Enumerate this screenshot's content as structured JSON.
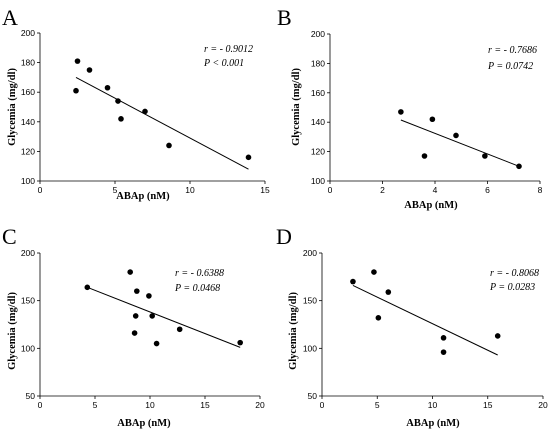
{
  "chart_data": [
    {
      "type": "scatter",
      "panel_label": "A",
      "xlabel": "ABAp (nM)",
      "ylabel": "Glycemia (mg/dl)",
      "xlim": [
        0,
        15
      ],
      "ylim": [
        100,
        200
      ],
      "xticks": [
        0,
        5,
        10,
        15
      ],
      "yticks": [
        100,
        120,
        140,
        160,
        180,
        200
      ],
      "points": [
        {
          "x": 2.5,
          "y": 181
        },
        {
          "x": 2.4,
          "y": 161
        },
        {
          "x": 3.3,
          "y": 175
        },
        {
          "x": 4.5,
          "y": 163
        },
        {
          "x": 5.2,
          "y": 154
        },
        {
          "x": 5.4,
          "y": 142
        },
        {
          "x": 7.0,
          "y": 147
        },
        {
          "x": 8.6,
          "y": 124
        },
        {
          "x": 13.9,
          "y": 116
        }
      ],
      "trendline": {
        "x": [
          2.4,
          13.9
        ],
        "y": [
          170,
          108
        ]
      },
      "stats": {
        "r": "r = - 0.9012",
        "p": "P < 0.001"
      }
    },
    {
      "type": "scatter",
      "panel_label": "B",
      "xlabel": "ABAp (nM)",
      "ylabel": "Glycemia (mg/dl)",
      "xlim": [
        0,
        8
      ],
      "ylim": [
        100,
        200
      ],
      "xticks": [
        0,
        2,
        4,
        6,
        8
      ],
      "yticks": [
        100,
        120,
        140,
        160,
        180,
        200
      ],
      "points": [
        {
          "x": 2.7,
          "y": 147
        },
        {
          "x": 3.6,
          "y": 117
        },
        {
          "x": 3.9,
          "y": 142
        },
        {
          "x": 4.8,
          "y": 131
        },
        {
          "x": 5.9,
          "y": 117
        },
        {
          "x": 7.2,
          "y": 110
        }
      ],
      "trendline": {
        "x": [
          2.7,
          7.2
        ],
        "y": [
          141.5,
          110
        ]
      },
      "stats": {
        "r": "r = - 0.7686",
        "p": "P = 0.0742"
      }
    },
    {
      "type": "scatter",
      "panel_label": "C",
      "xlabel": "ABAp (nM)",
      "ylabel": "Glycemia (mg/dl)",
      "xlim": [
        0,
        20
      ],
      "ylim": [
        50,
        200
      ],
      "xticks": [
        0,
        5,
        10,
        15,
        20
      ],
      "yticks": [
        50,
        100,
        150,
        200
      ],
      "points": [
        {
          "x": 4.3,
          "y": 164
        },
        {
          "x": 8.2,
          "y": 180
        },
        {
          "x": 8.8,
          "y": 160
        },
        {
          "x": 8.7,
          "y": 134
        },
        {
          "x": 8.6,
          "y": 116
        },
        {
          "x": 9.9,
          "y": 155
        },
        {
          "x": 10.2,
          "y": 134
        },
        {
          "x": 10.6,
          "y": 105
        },
        {
          "x": 12.7,
          "y": 120
        },
        {
          "x": 18.2,
          "y": 106
        }
      ],
      "trendline": {
        "x": [
          4.3,
          18.2
        ],
        "y": [
          164,
          101
        ]
      },
      "stats": {
        "r": "r = - 0.6388",
        "p": "P = 0.0468"
      }
    },
    {
      "type": "scatter",
      "panel_label": "D",
      "xlabel": "ABAp (nM)",
      "ylabel": "Glycemia (mg/dl)",
      "xlim": [
        0,
        20
      ],
      "ylim": [
        50,
        200
      ],
      "xticks": [
        0,
        5,
        10,
        15,
        20
      ],
      "yticks": [
        50,
        100,
        150,
        200
      ],
      "points": [
        {
          "x": 2.8,
          "y": 170
        },
        {
          "x": 4.7,
          "y": 180
        },
        {
          "x": 5.1,
          "y": 132
        },
        {
          "x": 6.0,
          "y": 159
        },
        {
          "x": 11.0,
          "y": 111
        },
        {
          "x": 11.0,
          "y": 96
        },
        {
          "x": 15.9,
          "y": 113
        }
      ],
      "trendline": {
        "x": [
          2.8,
          15.9
        ],
        "y": [
          166,
          93
        ]
      },
      "stats": {
        "r": "r = - 0.8068",
        "p": "P = 0.0283"
      }
    }
  ]
}
